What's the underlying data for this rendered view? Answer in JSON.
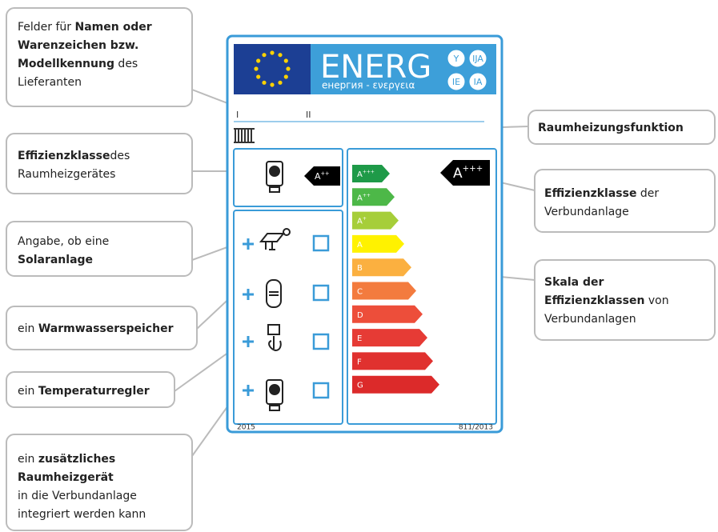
{
  "callouts": [
    {
      "box": "left",
      "lines": [
        [
          {
            "text": "Felder für "
          },
          {
            "text": "Namen oder",
            "bold": true
          }
        ],
        [
          {
            "text": "Warenzeichen bzw.",
            "bold": true
          }
        ],
        [
          {
            "text": "Modellkennung",
            "bold": true
          },
          {
            "text": " des"
          }
        ],
        [
          {
            "text": "Lieferanten"
          }
        ]
      ]
    },
    {
      "box": "left",
      "lines": [
        [
          {
            "text": "Effizienzklasse",
            "bold": true
          },
          {
            "text": "des"
          }
        ],
        [
          {
            "text": "Raumheizgerätes"
          }
        ]
      ]
    },
    {
      "box": "left",
      "lines": [
        [
          {
            "text": "Angabe, ob eine"
          }
        ],
        [
          {
            "text": "Solaranlage",
            "bold": true
          }
        ]
      ]
    },
    {
      "box": "left",
      "lines": [
        [
          {
            "text": "ein "
          },
          {
            "text": "Warmwasserspeicher",
            "bold": true
          }
        ]
      ]
    },
    {
      "box": "left",
      "lines": [
        [
          {
            "text": "ein "
          },
          {
            "text": "Temperaturregler",
            "bold": true
          }
        ]
      ]
    },
    {
      "box": "left",
      "lines": [
        [
          {
            "text": "ein "
          },
          {
            "text": "zusätzliches",
            "bold": true
          }
        ],
        [
          {
            "text": "Raumheizgerät",
            "bold": true
          }
        ],
        [
          {
            "text": "in die Verbundanlage"
          }
        ],
        [
          {
            "text": "integriert werden kann"
          }
        ]
      ]
    },
    {
      "box": "right",
      "lines": [
        [
          {
            "text": "Raumheizungsfunktion",
            "bold": true
          }
        ]
      ]
    },
    {
      "box": "right",
      "lines": [
        [
          {
            "text": "Effizienzklasse",
            "bold": true
          },
          {
            "text": " der"
          }
        ],
        [
          {
            "text": "Verbundanlage"
          }
        ]
      ]
    },
    {
      "box": "right",
      "lines": [
        [
          {
            "text": "Skala der",
            "bold": true
          }
        ],
        [
          {
            "text": "Effizienzklassen",
            "bold": true
          },
          {
            "text": " von"
          }
        ],
        [
          {
            "text": "Verbundanlagen"
          }
        ]
      ]
    }
  ],
  "label": {
    "energy": "ENERG",
    "languages": [
      "Y",
      "IJA",
      "IE",
      "IA"
    ],
    "subtitle": "енергия - ενεργεια",
    "fields": [
      "I",
      "II"
    ],
    "heater_class": {
      "letter": "A",
      "sup": "++"
    },
    "package_class": {
      "letter": "A",
      "sup": "+++"
    },
    "classes": [
      {
        "letter": "A",
        "sup": "+++",
        "color": "#1e9a48"
      },
      {
        "letter": "A",
        "sup": "++",
        "color": "#4db848"
      },
      {
        "letter": "A",
        "sup": "+",
        "color": "#a6ce39"
      },
      {
        "letter": "A",
        "color": "#fff200"
      },
      {
        "letter": "B",
        "color": "#fbb040"
      },
      {
        "letter": "C",
        "color": "#f37b3e"
      },
      {
        "letter": "D",
        "color": "#ed4e3a"
      },
      {
        "letter": "E",
        "color": "#e63b35"
      },
      {
        "letter": "F",
        "color": "#e0312f"
      },
      {
        "letter": "G",
        "color": "#dc2a2a"
      }
    ],
    "year": "2015",
    "regulation": "811/2013"
  }
}
